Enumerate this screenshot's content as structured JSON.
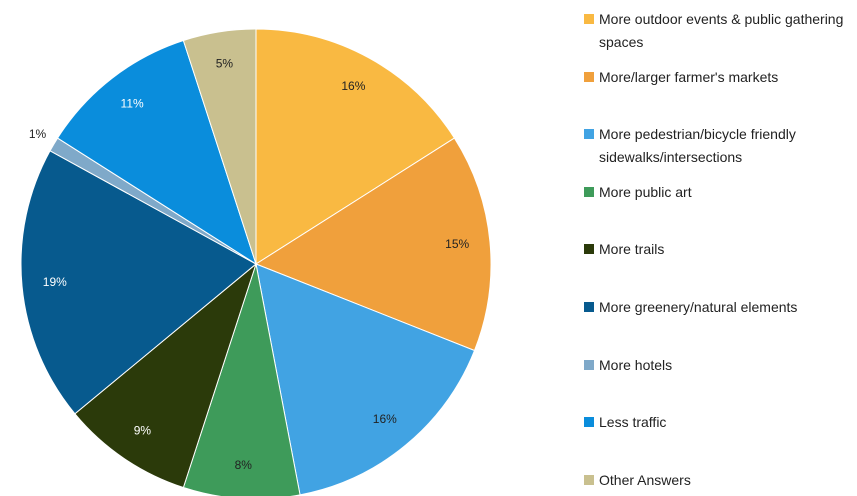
{
  "chart_data": {
    "type": "pie",
    "categories": [
      "More outdoor events & public gathering spaces",
      "More/larger farmer's markets",
      "More pedestrian/bicycle friendly sidewalks/intersections",
      "More public art",
      "More trails",
      "More greenery/natural elements",
      "More hotels",
      "Less traffic",
      "Other Answers"
    ],
    "values": [
      16,
      15,
      16,
      8,
      9,
      19,
      1,
      11,
      5
    ],
    "value_labels": [
      "16%",
      "15%",
      "16%",
      "8%",
      "9%",
      "19%",
      "1%",
      "11%",
      "5%"
    ],
    "colors": [
      "#f9b942",
      "#f0a03c",
      "#41a3e3",
      "#3e9b5a",
      "#2b3a0a",
      "#075a8e",
      "#7fa9c9",
      "#0a8ddc",
      "#c9c08f"
    ]
  }
}
